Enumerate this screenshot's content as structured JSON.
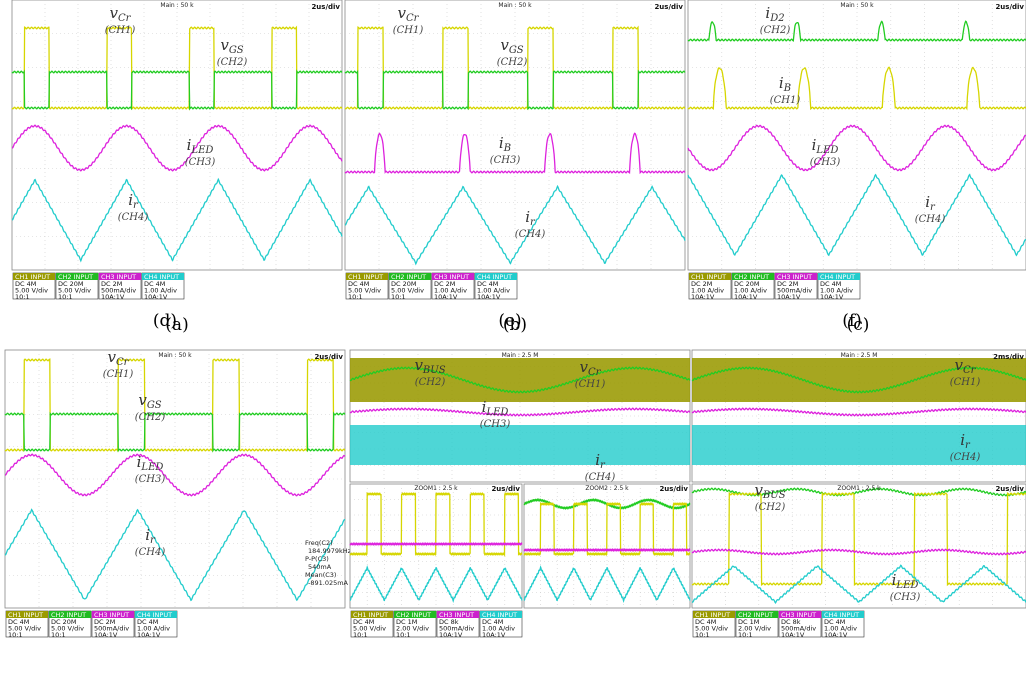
{
  "panels": [
    {
      "caption": "(a)",
      "header": "Main : 50 k",
      "timebase": "2us/div",
      "labels": [
        {
          "symbol": "v",
          "sub": "Cr",
          "channel": "(CH1)"
        },
        {
          "symbol": "v",
          "sub": "GS",
          "channel": "(CH2)"
        },
        {
          "symbol": "i",
          "sub": "LED",
          "channel": "(CH3)"
        },
        {
          "symbol": "i",
          "sub": "r",
          "channel": "(CH4)"
        }
      ],
      "channels": [
        {
          "name": "CH1 INPUT",
          "lines": [
            "DC 4M",
            "5.00 V/div",
            "10:1"
          ]
        },
        {
          "name": "CH2 INPUT",
          "lines": [
            "DC 20M",
            "5.00 V/div",
            "10:1"
          ]
        },
        {
          "name": "CH3 INPUT",
          "lines": [
            "DC 2M",
            "500mA/div",
            "10A:1V"
          ]
        },
        {
          "name": "CH4 INPUT",
          "lines": [
            "DC 4M",
            "1.00 A/div",
            "10A:1V"
          ]
        }
      ]
    },
    {
      "caption": "(b)",
      "header": "Main : 50 k",
      "timebase": "2us/div",
      "labels": [
        {
          "symbol": "v",
          "sub": "Cr",
          "channel": "(CH1)"
        },
        {
          "symbol": "v",
          "sub": "GS",
          "channel": "(CH2)"
        },
        {
          "symbol": "i",
          "sub": "B",
          "channel": "(CH3)"
        },
        {
          "symbol": "i",
          "sub": "r",
          "channel": "(CH4)"
        }
      ],
      "channels": [
        {
          "name": "CH1 INPUT",
          "lines": [
            "DC 4M",
            "5.00 V/div",
            "10:1"
          ]
        },
        {
          "name": "CH2 INPUT",
          "lines": [
            "DC 20M",
            "5.00 V/div",
            "10:1"
          ]
        },
        {
          "name": "CH3 INPUT",
          "lines": [
            "DC 2M",
            "1.00 A/div",
            "10A:1V"
          ]
        },
        {
          "name": "CH4 INPUT",
          "lines": [
            "DC 4M",
            "1.00 A/div",
            "10A:1V"
          ]
        }
      ]
    },
    {
      "caption": "(c)",
      "header": "Main : 50 k",
      "timebase": "2us/div",
      "labels": [
        {
          "symbol": "i",
          "sub": "D2",
          "channel": "(CH2)"
        },
        {
          "symbol": "i",
          "sub": "B",
          "channel": "(CH1)"
        },
        {
          "symbol": "i",
          "sub": "LED",
          "channel": "(CH3)"
        },
        {
          "symbol": "i",
          "sub": "r",
          "channel": "(CH4)"
        }
      ],
      "channels": [
        {
          "name": "CH1 INPUT",
          "lines": [
            "DC 2M",
            "1.00 A/div",
            "10A:1V"
          ]
        },
        {
          "name": "CH2 INPUT",
          "lines": [
            "DC 20M",
            "1.00 A/div",
            "10A:1V"
          ]
        },
        {
          "name": "CH3 INPUT",
          "lines": [
            "DC 2M",
            "500mA/div",
            "10A:1V"
          ]
        },
        {
          "name": "CH4 INPUT",
          "lines": [
            "DC 4M",
            "1.00 A/div",
            "10A:1V"
          ]
        }
      ]
    },
    {
      "caption": "(d)",
      "header": "Main : 50 k",
      "timebase": "2us/div",
      "labels": [
        {
          "symbol": "v",
          "sub": "Cr",
          "channel": "(CH1)"
        },
        {
          "symbol": "v",
          "sub": "GS",
          "channel": "(CH2)"
        },
        {
          "symbol": "i",
          "sub": "LED",
          "channel": "(CH3)"
        },
        {
          "symbol": "i",
          "sub": "r",
          "channel": "(CH4)"
        }
      ],
      "measurements": [
        "Freq(C2)",
        "184.9979kHz",
        "P-P(C3)",
        "540mA",
        "Mean(C3)",
        "-891.025mA"
      ],
      "channels": [
        {
          "name": "CH1 INPUT",
          "lines": [
            "DC 4M",
            "5.00 V/div",
            "10:1"
          ]
        },
        {
          "name": "CH2 INPUT",
          "lines": [
            "DC 20M",
            "5.00 V/div",
            "10:1"
          ]
        },
        {
          "name": "CH3 INPUT",
          "lines": [
            "DC 2M",
            "500mA/div",
            "10A:1V"
          ]
        },
        {
          "name": "CH4 INPUT",
          "lines": [
            "DC 4M",
            "1.00 A/div",
            "10A:1V"
          ]
        }
      ]
    },
    {
      "caption": "(e)",
      "header": "Main : 2.5 M",
      "labels": [
        {
          "symbol": "v",
          "sub": "BUS",
          "channel": "(CH2)"
        },
        {
          "symbol": "v",
          "sub": "Cr",
          "channel": "(CH1)"
        },
        {
          "symbol": "i",
          "sub": "LED",
          "channel": "(CH3)"
        },
        {
          "symbol": "i",
          "sub": "r",
          "channel": "(CH4)"
        }
      ],
      "zooms": [
        {
          "title": "ZOOM1 : 2.5 k",
          "timebase": "2us/div"
        },
        {
          "title": "ZOOM2 : 2.5 k",
          "timebase": "2us/div"
        }
      ],
      "channels": [
        {
          "name": "CH1 INPUT",
          "lines": [
            "DC 4M",
            "5.00 V/div",
            "10:1"
          ]
        },
        {
          "name": "CH2 INPUT",
          "lines": [
            "DC 1M",
            "2.00 V/div",
            "10:1"
          ]
        },
        {
          "name": "CH3 INPUT",
          "lines": [
            "DC 8k",
            "500mA/div",
            "10A:1V"
          ]
        },
        {
          "name": "CH4 INPUT",
          "lines": [
            "DC 4M",
            "1.00 A/div",
            "10A:1V"
          ]
        }
      ]
    },
    {
      "caption": "(f)",
      "header": "Main : 2.5 M",
      "timebase": "2ms/div",
      "labels": [
        {
          "symbol": "v",
          "sub": "Cr",
          "channel": "(CH1)"
        },
        {
          "symbol": "i",
          "sub": "r",
          "channel": "(CH4)"
        },
        {
          "symbol": "v",
          "sub": "BUS",
          "channel": "(CH2)"
        },
        {
          "symbol": "i",
          "sub": "LED",
          "channel": "(CH3)"
        }
      ],
      "zooms": [
        {
          "title": "ZOOM1 : 2.5 k",
          "timebase": "2us/div"
        }
      ],
      "channels": [
        {
          "name": "CH1 INPUT",
          "lines": [
            "DC 4M",
            "5.00 V/div",
            "10:1"
          ]
        },
        {
          "name": "CH2 INPUT",
          "lines": [
            "DC 1M",
            "2.00 V/div",
            "10:1"
          ]
        },
        {
          "name": "CH3 INPUT",
          "lines": [
            "DC 8k",
            "500mA/div",
            "10A:1V"
          ]
        },
        {
          "name": "CH4 INPUT",
          "lines": [
            "DC 4M",
            "1.00 A/div",
            "10A:1V"
          ]
        }
      ]
    }
  ]
}
